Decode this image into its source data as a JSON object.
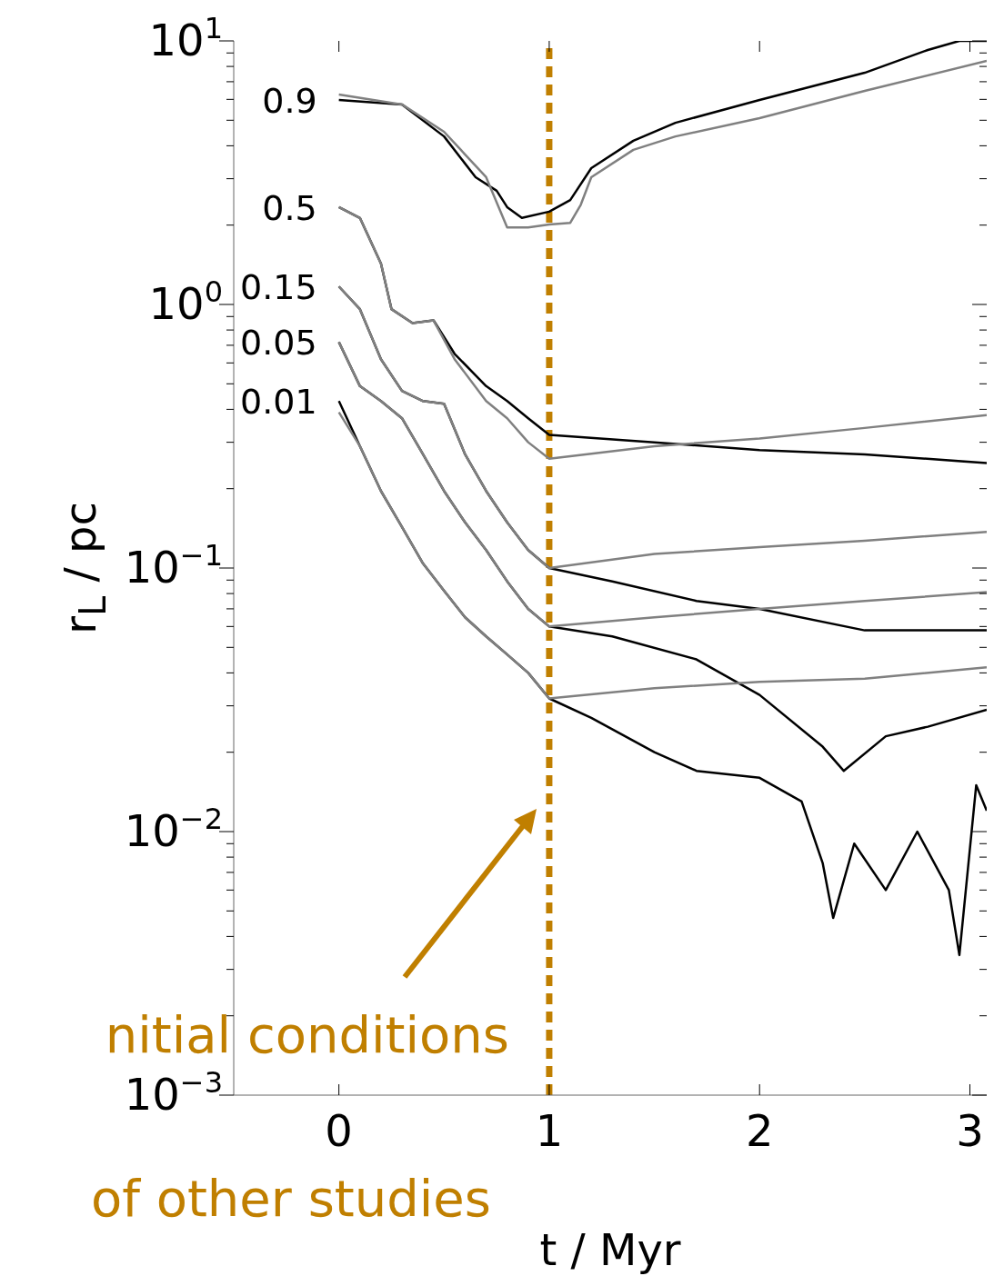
{
  "chart_data": {
    "type": "line",
    "xlabel": "t / Myr",
    "ylabel": "r$_{L}$ / pc",
    "log": "y",
    "grid": false,
    "legend": false,
    "marker": "none",
    "line_style": "solid",
    "xlim": [
      -0.5,
      3.08
    ],
    "xticks": [
      0,
      1,
      2,
      3
    ],
    "ylim": [
      0.001,
      10
    ],
    "yticks": [
      {
        "value": 0.001,
        "label": "10$^{−3}$"
      },
      {
        "value": 0.002,
        "label": null
      },
      {
        "value": 0.003,
        "label": null
      },
      {
        "value": 0.004,
        "label": null
      },
      {
        "value": 0.005,
        "label": null
      },
      {
        "value": 0.006,
        "label": null
      },
      {
        "value": 0.007,
        "label": null
      },
      {
        "value": 0.008,
        "label": null
      },
      {
        "value": 0.009,
        "label": null
      },
      {
        "value": 0.01,
        "label": "10$^{−2}$"
      },
      {
        "value": 0.02,
        "label": null
      },
      {
        "value": 0.03,
        "label": null
      },
      {
        "value": 0.04,
        "label": null
      },
      {
        "value": 0.05,
        "label": null
      },
      {
        "value": 0.06,
        "label": null
      },
      {
        "value": 0.07,
        "label": null
      },
      {
        "value": 0.08,
        "label": null
      },
      {
        "value": 0.09,
        "label": null
      },
      {
        "value": 0.1,
        "label": "10$^{−1}$"
      },
      {
        "value": 0.2,
        "label": null
      },
      {
        "value": 0.3,
        "label": null
      },
      {
        "value": 0.4,
        "label": null
      },
      {
        "value": 0.5,
        "label": null
      },
      {
        "value": 0.6,
        "label": null
      },
      {
        "value": 0.7,
        "label": null
      },
      {
        "value": 0.8,
        "label": null
      },
      {
        "value": 0.9,
        "label": null
      },
      {
        "value": 1,
        "label": "10$^{0}$"
      },
      {
        "value": 2,
        "label": null
      },
      {
        "value": 3,
        "label": null
      },
      {
        "value": 4,
        "label": null
      },
      {
        "value": 5,
        "label": null
      },
      {
        "value": 6,
        "label": null
      },
      {
        "value": 7,
        "label": null
      },
      {
        "value": 8,
        "label": null
      },
      {
        "value": 9,
        "label": null
      },
      {
        "value": 10,
        "label": "10$^{1}$"
      }
    ],
    "series": [
      {
        "type": "line",
        "color": "#000000",
        "x": [
          0,
          0.3,
          0.5,
          0.65,
          0.75,
          0.8,
          0.87,
          1.0,
          1.1,
          1.2,
          1.4,
          1.6,
          2.0,
          2.5,
          2.8,
          2.95,
          3.08
        ],
        "values": [
          5.97,
          5.74,
          4.34,
          3.04,
          2.7,
          2.34,
          2.13,
          2.25,
          2.49,
          3.29,
          4.18,
          4.89,
          5.97,
          7.57,
          9.24,
          10,
          10
        ]
      },
      {
        "type": "line",
        "color": "#808080",
        "x": [
          0,
          0.3,
          0.5,
          0.7,
          0.8,
          0.9,
          1.0,
          1.1,
          1.15,
          1.2,
          1.4,
          1.6,
          2.0,
          2.5,
          3.08
        ],
        "values": [
          6.26,
          5.74,
          4.52,
          3.04,
          1.96,
          1.96,
          2.01,
          2.04,
          2.39,
          3.04,
          3.86,
          4.34,
          5.09,
          6.46,
          8.4
        ]
      },
      {
        "type": "line",
        "color": "#000000",
        "x": [
          0,
          0.1,
          0.2,
          0.25,
          0.35,
          0.45,
          0.55,
          0.7,
          0.8,
          0.9,
          1.0,
          1.5,
          2.0,
          2.5,
          3.08
        ],
        "values": [
          2.34,
          2.13,
          1.43,
          0.96,
          0.85,
          0.87,
          0.65,
          0.49,
          0.43,
          0.37,
          0.32,
          0.3,
          0.28,
          0.27,
          0.25
        ]
      },
      {
        "type": "line",
        "color": "#808080",
        "x": [
          0,
          0.1,
          0.2,
          0.25,
          0.35,
          0.45,
          0.55,
          0.7,
          0.8,
          0.9,
          1.0,
          1.5,
          2.0,
          2.5,
          3.08
        ],
        "values": [
          2.34,
          2.13,
          1.43,
          0.96,
          0.85,
          0.87,
          0.62,
          0.43,
          0.37,
          0.3,
          0.26,
          0.29,
          0.31,
          0.34,
          0.38
        ]
      },
      {
        "type": "line",
        "color": "#000000",
        "x": [
          0,
          0.1,
          0.2,
          0.3,
          0.4,
          0.5,
          0.6,
          0.7,
          0.8,
          0.9,
          1.0,
          1.3,
          1.7,
          2.0,
          2.5,
          3.08
        ],
        "values": [
          1.17,
          0.96,
          0.62,
          0.47,
          0.43,
          0.42,
          0.27,
          0.196,
          0.149,
          0.117,
          0.1,
          0.089,
          0.075,
          0.07,
          0.058,
          0.058
        ]
      },
      {
        "type": "line",
        "color": "#808080",
        "x": [
          0,
          0.1,
          0.2,
          0.3,
          0.4,
          0.5,
          0.6,
          0.7,
          0.8,
          0.9,
          1.0,
          1.5,
          2.0,
          2.5,
          3.08
        ],
        "values": [
          1.17,
          0.96,
          0.62,
          0.47,
          0.43,
          0.42,
          0.27,
          0.196,
          0.149,
          0.117,
          0.1,
          0.113,
          0.12,
          0.127,
          0.137
        ]
      },
      {
        "type": "line",
        "color": "#000000",
        "x": [
          0,
          0.1,
          0.2,
          0.3,
          0.4,
          0.5,
          0.6,
          0.7,
          0.8,
          0.9,
          1.0,
          1.3,
          1.7,
          2.0,
          2.3,
          2.4,
          2.6,
          2.8,
          3.08
        ],
        "values": [
          0.72,
          0.49,
          0.43,
          0.37,
          0.27,
          0.196,
          0.149,
          0.117,
          0.089,
          0.07,
          0.06,
          0.055,
          0.045,
          0.033,
          0.021,
          0.017,
          0.023,
          0.025,
          0.029
        ]
      },
      {
        "type": "line",
        "color": "#808080",
        "x": [
          0,
          0.1,
          0.2,
          0.3,
          0.4,
          0.5,
          0.6,
          0.7,
          0.8,
          0.9,
          1.0,
          1.5,
          2.0,
          2.5,
          3.08
        ],
        "values": [
          0.72,
          0.49,
          0.43,
          0.37,
          0.27,
          0.196,
          0.149,
          0.117,
          0.089,
          0.07,
          0.06,
          0.065,
          0.07,
          0.075,
          0.081
        ]
      },
      {
        "type": "line",
        "color": "#000000",
        "x": [
          0,
          0.1,
          0.2,
          0.3,
          0.4,
          0.5,
          0.6,
          0.7,
          0.8,
          0.9,
          1.0,
          1.2,
          1.5,
          1.7,
          2.0,
          2.2,
          2.3,
          2.35,
          2.45,
          2.6,
          2.75,
          2.9,
          2.95,
          3.03,
          3.08
        ],
        "values": [
          0.43,
          0.29,
          0.196,
          0.143,
          0.104,
          0.082,
          0.065,
          0.055,
          0.047,
          0.04,
          0.032,
          0.027,
          0.02,
          0.017,
          0.016,
          0.013,
          0.0076,
          0.0047,
          0.009,
          0.006,
          0.01,
          0.006,
          0.0034,
          0.015,
          0.012
        ]
      },
      {
        "type": "line",
        "color": "#808080",
        "x": [
          0,
          0.1,
          0.2,
          0.3,
          0.4,
          0.5,
          0.6,
          0.7,
          0.8,
          0.9,
          1.0,
          1.5,
          2.0,
          2.5,
          3.08
        ],
        "values": [
          0.39,
          0.29,
          0.196,
          0.143,
          0.104,
          0.082,
          0.065,
          0.055,
          0.047,
          0.04,
          0.032,
          0.035,
          0.037,
          0.038,
          0.042
        ]
      }
    ],
    "ref_lines": [
      {
        "axis": "x",
        "value": 1,
        "color": "#c07f00",
        "line_style": "dashed"
      }
    ],
    "annotations": [
      "0.9",
      "0.5",
      "0.15",
      "0.05",
      "0.01",
      "nitial conditions\nof other studies"
    ]
  }
}
